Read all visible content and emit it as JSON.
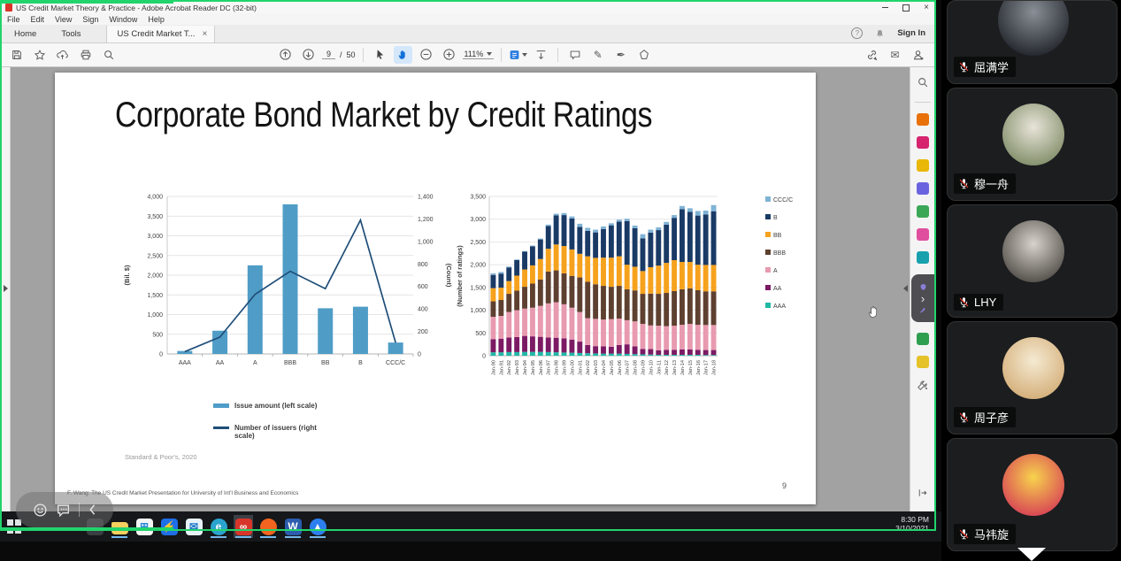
{
  "ui_colors": {
    "share_border": "#21d46b",
    "hand_tool_accent": "#1070d8",
    "taskbar_underline": "#76b9ed"
  },
  "window": {
    "title": "US Credit Market Theory & Practice - Adobe Acrobat Reader DC (32-bit)",
    "close_glyph": "×"
  },
  "menu": {
    "items": [
      "File",
      "Edit",
      "View",
      "Sign",
      "Window",
      "Help"
    ]
  },
  "tabs": {
    "home": "Home",
    "tools": "Tools",
    "document": "US Credit Market T...",
    "close_glyph": "×"
  },
  "account": {
    "sign_in": "Sign In"
  },
  "toolbar": {
    "page_current": "9",
    "page_separator": "/",
    "page_total": "50",
    "zoom_level": "111%"
  },
  "slide": {
    "title": "Corporate Bond Market by Credit Ratings",
    "footer": "F. Wang: The US Credit Market Presentation for University of Int'l Business and Economics",
    "page_number": "9"
  },
  "chart_data": [
    {
      "type": "bar-line-combo",
      "categories": [
        "AAA",
        "AA",
        "A",
        "BBB",
        "BB",
        "B",
        "CCC/C"
      ],
      "series": [
        {
          "name": "Issue amount (left scale)",
          "type": "bar",
          "axis": "left",
          "color": "#4f9dc7",
          "values": [
            75,
            590,
            2250,
            3800,
            1160,
            1200,
            290
          ]
        },
        {
          "name": "Number of issuers (right scale)",
          "type": "line",
          "axis": "right",
          "color": "#1f4e79",
          "values": [
            20,
            150,
            530,
            735,
            580,
            1190,
            100
          ]
        }
      ],
      "ylabel_left": "(Bil. $)",
      "ylabel_right": "(Count)",
      "ylim_left": [
        0,
        4000
      ],
      "ytick_left": 500,
      "ylim_right": [
        0,
        1400
      ],
      "ytick_right": 200,
      "grid": true,
      "legend_position": "below",
      "source": "Standard & Poor's, 2020"
    },
    {
      "type": "stacked-bar",
      "ylabel": "(Number of ratings)",
      "ylim": [
        0,
        3500
      ],
      "ytick": 500,
      "grid": true,
      "legend_position": "right",
      "categories": [
        "Jan-90",
        "Jan-91",
        "Jan-92",
        "Jan-93",
        "Jan-94",
        "Jan-95",
        "Jan-96",
        "Jan-97",
        "Jan-98",
        "Jan-99",
        "Jan-00",
        "Jan-01",
        "Jan-02",
        "Jan-03",
        "Jan-04",
        "Jan-05",
        "Jan-06",
        "Jan-07",
        "Jan-08",
        "Jan-09",
        "Jan-10",
        "Jan-11",
        "Jan-12",
        "Jan-13",
        "Jan-14",
        "Jan-15",
        "Jan-16",
        "Jan-17",
        "Jan-18"
      ],
      "series": [
        {
          "name": "AAA",
          "color": "#1fb8a6",
          "values": [
            75,
            75,
            80,
            80,
            85,
            85,
            85,
            80,
            75,
            70,
            65,
            60,
            55,
            50,
            45,
            45,
            45,
            40,
            35,
            30,
            25,
            20,
            20,
            20,
            20,
            20,
            20,
            15,
            15
          ]
        },
        {
          "name": "AA",
          "color": "#7c1a64",
          "values": [
            290,
            300,
            320,
            330,
            350,
            340,
            330,
            320,
            320,
            310,
            290,
            250,
            180,
            160,
            160,
            150,
            190,
            210,
            170,
            120,
            120,
            100,
            110,
            110,
            120,
            120,
            110,
            110,
            110
          ]
        },
        {
          "name": "A",
          "color": "#e89ab0",
          "values": [
            490,
            500,
            560,
            590,
            600,
            630,
            680,
            750,
            780,
            750,
            700,
            650,
            590,
            600,
            590,
            610,
            580,
            530,
            550,
            550,
            520,
            540,
            520,
            530,
            540,
            560,
            550,
            550,
            550
          ]
        },
        {
          "name": "BBB",
          "color": "#5e4030",
          "values": [
            340,
            350,
            400,
            430,
            480,
            530,
            580,
            700,
            700,
            680,
            700,
            760,
            800,
            760,
            740,
            710,
            720,
            680,
            680,
            660,
            700,
            700,
            730,
            760,
            780,
            780,
            760,
            740,
            740
          ]
        },
        {
          "name": "BB",
          "color": "#f6a21d",
          "values": [
            290,
            270,
            280,
            330,
            380,
            400,
            450,
            500,
            570,
            600,
            580,
            520,
            560,
            580,
            620,
            640,
            650,
            540,
            520,
            500,
            580,
            620,
            660,
            680,
            600,
            580,
            560,
            580,
            580
          ]
        },
        {
          "name": "B",
          "color": "#1a3a66",
          "values": [
            290,
            310,
            300,
            340,
            390,
            420,
            430,
            500,
            640,
            680,
            680,
            590,
            560,
            560,
            630,
            710,
            760,
            960,
            850,
            720,
            760,
            780,
            840,
            930,
            1160,
            1100,
            1080,
            1110,
            1180
          ]
        },
        {
          "name": "CCC/C",
          "color": "#7fb3d5",
          "values": [
            35,
            35,
            20,
            15,
            15,
            15,
            20,
            30,
            35,
            45,
            45,
            70,
            65,
            60,
            55,
            45,
            45,
            50,
            55,
            90,
            65,
            60,
            60,
            60,
            70,
            80,
            100,
            85,
            135
          ]
        }
      ],
      "legend_order": [
        "CCC/C",
        "B",
        "BB",
        "BBB",
        "A",
        "AA",
        "AAA"
      ]
    }
  ],
  "acrobat_sidebar": {
    "tools": [
      {
        "name": "export-pdf",
        "color": "#e8710a"
      },
      {
        "name": "create-pdf",
        "color": "#d6246e"
      },
      {
        "name": "comment",
        "color": "#e8b708"
      },
      {
        "name": "combine-files",
        "color": "#6a63e0"
      },
      {
        "name": "organize-pages",
        "color": "#3aa757"
      },
      {
        "name": "fill-sign",
        "color": "#e04f9e"
      },
      {
        "name": "edit-pdf",
        "color": "#18a0ae"
      }
    ],
    "tab_tools": [
      {
        "name": "protect",
        "color": "#8a7fd8"
      },
      {
        "name": "certificates",
        "color": "#8a7fd8"
      }
    ],
    "lower_tools": [
      {
        "name": "print-production",
        "color": "#2e9e4f"
      },
      {
        "name": "send-for-review",
        "color": "#e6c229"
      }
    ]
  },
  "participants": {
    "items": [
      {
        "name": "屈满学",
        "muted": true,
        "avatar_colors": [
          "#8a8f96",
          "#1c2026"
        ]
      },
      {
        "name": "穆一舟",
        "muted": true,
        "avatar_colors": [
          "#e8e4d8",
          "#7c8a64"
        ]
      },
      {
        "name": "LHY",
        "muted": true,
        "avatar_colors": [
          "#d8d3cb",
          "#4b4742"
        ]
      },
      {
        "name": "周子彦",
        "muted": true,
        "avatar_colors": [
          "#f5ead2",
          "#d2ab74"
        ]
      },
      {
        "name": "马祎旋",
        "muted": true,
        "avatar_colors": [
          "#f7d34d",
          "#d63b55"
        ]
      }
    ]
  },
  "taskbar": {
    "clock_time": "8:30 PM",
    "clock_date": "3/10/2021",
    "apps": [
      {
        "name": "task-view",
        "color": "#3a3d42",
        "shape": "square",
        "glyph": "",
        "glyph_color": "#9aa0a6",
        "open": false,
        "active": false
      },
      {
        "name": "file-explorer",
        "color": "#f6cf5f",
        "shape": "folder",
        "glyph": "",
        "glyph_color": "#b98a1d",
        "open": true,
        "active": false
      },
      {
        "name": "microsoft-store",
        "color": "#f5f5f5",
        "shape": "square",
        "glyph": "⊞",
        "glyph_color": "#2b88d8",
        "open": false,
        "active": false
      },
      {
        "name": "thunder",
        "color": "#1e6fe8",
        "shape": "square",
        "glyph": "⚡",
        "glyph_color": "#ffffff",
        "open": false,
        "active": false
      },
      {
        "name": "mail",
        "color": "#e8f2fb",
        "shape": "square",
        "glyph": "✉",
        "glyph_color": "#1b74c4",
        "open": false,
        "active": false
      },
      {
        "name": "edge",
        "color": "#2ba3cf",
        "shape": "circle",
        "glyph": "e",
        "glyph_color": "#ffffff",
        "open": true,
        "active": false
      },
      {
        "name": "acrobat-reader",
        "color": "#d8352a",
        "shape": "square",
        "glyph": "∞",
        "glyph_color": "#ffffff",
        "open": true,
        "active": true
      },
      {
        "name": "firefox",
        "color": "#f2641f",
        "shape": "circle",
        "glyph": "",
        "glyph_color": "#ffd54d",
        "open": true,
        "active": false
      },
      {
        "name": "word",
        "color": "#2b5cad",
        "shape": "square",
        "glyph": "W",
        "glyph_color": "#ffffff",
        "open": true,
        "active": false
      },
      {
        "name": "tencent-meeting",
        "color": "#2d7ff0",
        "shape": "circle",
        "glyph": "▲",
        "glyph_color": "#ffffff",
        "open": true,
        "active": false
      }
    ]
  }
}
